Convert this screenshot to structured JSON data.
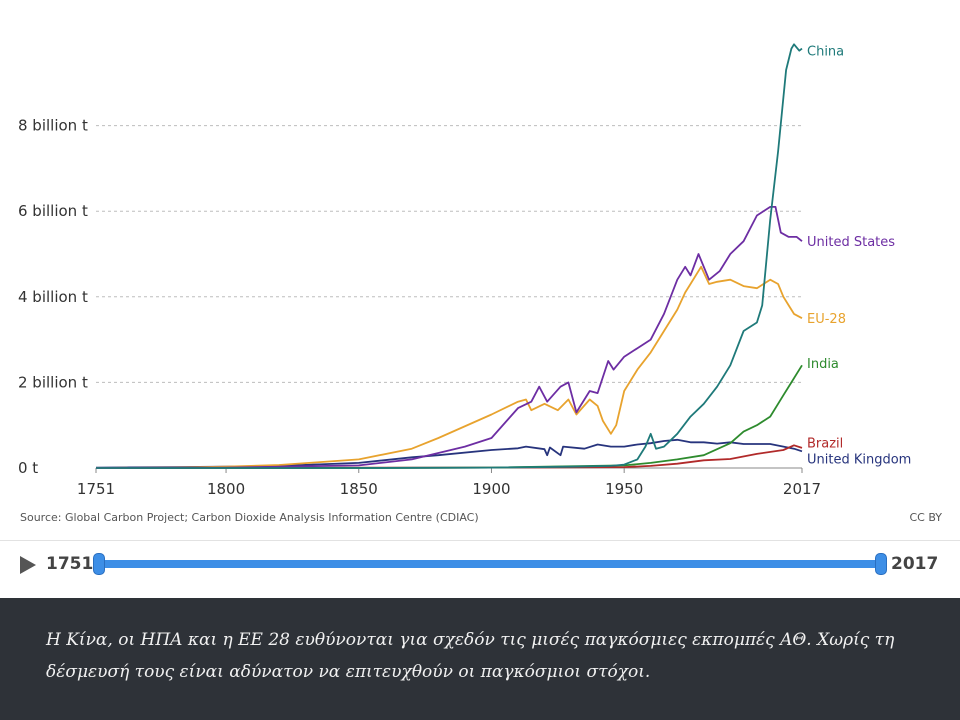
{
  "chart_data": {
    "type": "line",
    "title": "",
    "xlabel": "",
    "ylabel": "",
    "xlim": [
      1751,
      2017
    ],
    "ylim": [
      0,
      10
    ],
    "y_unit": "billion t",
    "grid": "horizontal dashed",
    "x_ticks": [
      "1751",
      "1800",
      "1850",
      "1900",
      "1950",
      "2017"
    ],
    "y_ticks": [
      {
        "value": 0,
        "label": "0 t"
      },
      {
        "value": 2,
        "label": "2 billion t"
      },
      {
        "value": 4,
        "label": "4 billion t"
      },
      {
        "value": 6,
        "label": "6 billion t"
      },
      {
        "value": 8,
        "label": "8 billion t"
      }
    ],
    "series": [
      {
        "name": "China",
        "color": "#1f7a7a",
        "points": [
          [
            1751,
            0
          ],
          [
            1800,
            0
          ],
          [
            1850,
            0
          ],
          [
            1900,
            0.01
          ],
          [
            1930,
            0.03
          ],
          [
            1945,
            0.05
          ],
          [
            1950,
            0.08
          ],
          [
            1955,
            0.2
          ],
          [
            1958,
            0.5
          ],
          [
            1960,
            0.8
          ],
          [
            1962,
            0.45
          ],
          [
            1965,
            0.5
          ],
          [
            1970,
            0.8
          ],
          [
            1975,
            1.2
          ],
          [
            1980,
            1.5
          ],
          [
            1985,
            1.9
          ],
          [
            1990,
            2.4
          ],
          [
            1995,
            3.2
          ],
          [
            2000,
            3.4
          ],
          [
            2002,
            3.8
          ],
          [
            2005,
            5.8
          ],
          [
            2008,
            7.4
          ],
          [
            2011,
            9.3
          ],
          [
            2013,
            9.8
          ],
          [
            2014,
            9.9
          ],
          [
            2016,
            9.75
          ],
          [
            2017,
            9.8
          ]
        ]
      },
      {
        "name": "United States",
        "color": "#6d2ea3",
        "points": [
          [
            1751,
            0
          ],
          [
            1800,
            0.01
          ],
          [
            1850,
            0.06
          ],
          [
            1870,
            0.2
          ],
          [
            1890,
            0.5
          ],
          [
            1900,
            0.7
          ],
          [
            1910,
            1.4
          ],
          [
            1915,
            1.55
          ],
          [
            1918,
            1.9
          ],
          [
            1921,
            1.55
          ],
          [
            1926,
            1.9
          ],
          [
            1929,
            2.0
          ],
          [
            1932,
            1.3
          ],
          [
            1937,
            1.8
          ],
          [
            1940,
            1.75
          ],
          [
            1944,
            2.5
          ],
          [
            1946,
            2.3
          ],
          [
            1950,
            2.6
          ],
          [
            1955,
            2.8
          ],
          [
            1960,
            3.0
          ],
          [
            1965,
            3.6
          ],
          [
            1970,
            4.4
          ],
          [
            1973,
            4.7
          ],
          [
            1975,
            4.5
          ],
          [
            1978,
            5.0
          ],
          [
            1982,
            4.4
          ],
          [
            1986,
            4.6
          ],
          [
            1990,
            5.0
          ],
          [
            1995,
            5.3
          ],
          [
            2000,
            5.9
          ],
          [
            2005,
            6.1
          ],
          [
            2007,
            6.1
          ],
          [
            2009,
            5.5
          ],
          [
            2012,
            5.4
          ],
          [
            2015,
            5.4
          ],
          [
            2017,
            5.3
          ]
        ]
      },
      {
        "name": "EU-28",
        "color": "#e8a32e",
        "points": [
          [
            1751,
            0
          ],
          [
            1780,
            0.01
          ],
          [
            1800,
            0.03
          ],
          [
            1820,
            0.07
          ],
          [
            1850,
            0.2
          ],
          [
            1870,
            0.45
          ],
          [
            1880,
            0.7
          ],
          [
            1900,
            1.25
          ],
          [
            1910,
            1.55
          ],
          [
            1913,
            1.6
          ],
          [
            1915,
            1.35
          ],
          [
            1920,
            1.5
          ],
          [
            1925,
            1.35
          ],
          [
            1929,
            1.6
          ],
          [
            1932,
            1.25
          ],
          [
            1937,
            1.6
          ],
          [
            1940,
            1.45
          ],
          [
            1942,
            1.1
          ],
          [
            1945,
            0.8
          ],
          [
            1947,
            1.0
          ],
          [
            1950,
            1.8
          ],
          [
            1955,
            2.3
          ],
          [
            1960,
            2.7
          ],
          [
            1965,
            3.2
          ],
          [
            1970,
            3.7
          ],
          [
            1973,
            4.1
          ],
          [
            1975,
            4.3
          ],
          [
            1979,
            4.7
          ],
          [
            1982,
            4.3
          ],
          [
            1985,
            4.35
          ],
          [
            1990,
            4.4
          ],
          [
            1995,
            4.25
          ],
          [
            2000,
            4.2
          ],
          [
            2005,
            4.4
          ],
          [
            2008,
            4.3
          ],
          [
            2010,
            4.0
          ],
          [
            2012,
            3.8
          ],
          [
            2014,
            3.6
          ],
          [
            2017,
            3.5
          ]
        ]
      },
      {
        "name": "India",
        "color": "#2e8b2e",
        "points": [
          [
            1751,
            0
          ],
          [
            1850,
            0
          ],
          [
            1900,
            0.01
          ],
          [
            1950,
            0.06
          ],
          [
            1960,
            0.12
          ],
          [
            1970,
            0.2
          ],
          [
            1980,
            0.3
          ],
          [
            1990,
            0.58
          ],
          [
            1995,
            0.85
          ],
          [
            2000,
            1.0
          ],
          [
            2005,
            1.2
          ],
          [
            2008,
            1.5
          ],
          [
            2010,
            1.7
          ],
          [
            2013,
            2.0
          ],
          [
            2015,
            2.2
          ],
          [
            2017,
            2.4
          ]
        ]
      },
      {
        "name": "Brazil",
        "color": "#b12a2a",
        "points": [
          [
            1751,
            0
          ],
          [
            1900,
            0.01
          ],
          [
            1950,
            0.02
          ],
          [
            1960,
            0.05
          ],
          [
            1970,
            0.1
          ],
          [
            1980,
            0.18
          ],
          [
            1990,
            0.21
          ],
          [
            2000,
            0.33
          ],
          [
            2010,
            0.42
          ],
          [
            2014,
            0.53
          ],
          [
            2017,
            0.47
          ]
        ]
      },
      {
        "name": "United Kingdom",
        "color": "#27347d",
        "points": [
          [
            1751,
            0.01
          ],
          [
            1780,
            0.02
          ],
          [
            1800,
            0.03
          ],
          [
            1820,
            0.05
          ],
          [
            1850,
            0.12
          ],
          [
            1870,
            0.25
          ],
          [
            1880,
            0.3
          ],
          [
            1900,
            0.42
          ],
          [
            1910,
            0.46
          ],
          [
            1913,
            0.5
          ],
          [
            1920,
            0.44
          ],
          [
            1921,
            0.3
          ],
          [
            1922,
            0.48
          ],
          [
            1926,
            0.3
          ],
          [
            1927,
            0.5
          ],
          [
            1935,
            0.45
          ],
          [
            1940,
            0.55
          ],
          [
            1945,
            0.5
          ],
          [
            1950,
            0.5
          ],
          [
            1955,
            0.55
          ],
          [
            1960,
            0.58
          ],
          [
            1965,
            0.63
          ],
          [
            1970,
            0.66
          ],
          [
            1975,
            0.6
          ],
          [
            1980,
            0.6
          ],
          [
            1985,
            0.57
          ],
          [
            1990,
            0.6
          ],
          [
            1995,
            0.56
          ],
          [
            2000,
            0.56
          ],
          [
            2005,
            0.56
          ],
          [
            2010,
            0.5
          ],
          [
            2014,
            0.45
          ],
          [
            2017,
            0.39
          ]
        ]
      }
    ]
  },
  "source_note": "Source: Global Carbon Project; Carbon Dioxide Analysis Information Centre (CDIAC)",
  "license": "CC BY",
  "timeline": {
    "start_label": "1751",
    "end_label": "2017",
    "start_year": 1751,
    "end_year": 2017
  },
  "caption": "Η Κίνα, οι ΗΠΑ και η ΕΕ 28 ευθύνονται για σχεδόν τις μισές παγκόσμιες εκπομπές ΑΘ. Χωρίς τη δέσμευσή τους είναι αδύνατον να επιτευχθούν οι παγκόσμιοι στόχοι."
}
